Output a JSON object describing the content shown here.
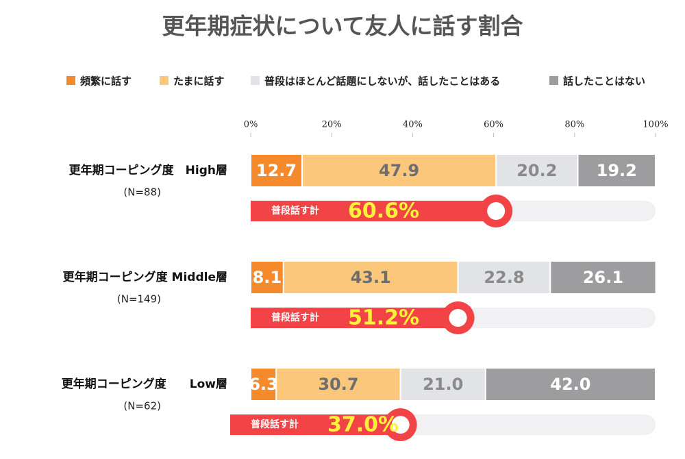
{
  "chart_data": {
    "type": "bar",
    "title": "更年期症状について友人に話す割合",
    "categories": [
      "更年期コーピング度　High層",
      "更年期コーピング度 Middle層",
      "更年期コーピング度　　Low層"
    ],
    "sample_sizes": [
      "(N=88)",
      "(N=149)",
      "(N=62)"
    ],
    "series": [
      {
        "name": "頻繁に話す",
        "color": "#f58a2c",
        "label_color": "#ffffff",
        "values": [
          12.7,
          8.1,
          6.3
        ]
      },
      {
        "name": "たまに話す",
        "color": "#fbc77b",
        "label_color": "#6e6e6e",
        "values": [
          47.9,
          43.1,
          30.7
        ]
      },
      {
        "name": "普段はほとんど話題にしないが、話したことはある",
        "color": "#e2e3e7",
        "label_color": "#8a8a8a",
        "values": [
          20.2,
          22.8,
          21.0
        ],
        "value_labels": [
          "20.2",
          "22.8",
          "21.0"
        ]
      },
      {
        "name": "話したことはない",
        "color": "#9d9d9f",
        "label_color": "#ffffff",
        "values": [
          19.2,
          26.1,
          42.0
        ],
        "value_labels": [
          "19.2",
          "26.1",
          "42.0"
        ]
      }
    ],
    "total": {
      "label": "普段話す計",
      "color": "#f24346",
      "values": [
        60.6,
        51.2,
        37.0
      ],
      "value_labels": [
        "60.6%",
        "51.2%",
        "37.0%"
      ]
    },
    "xlim": [
      0,
      100
    ],
    "xticks": [
      {
        "value": 0,
        "label": "0%"
      },
      {
        "value": 20,
        "label": "20%"
      },
      {
        "value": 40,
        "label": "40%"
      },
      {
        "value": 60,
        "label": "60%"
      },
      {
        "value": 80,
        "label": "80%"
      },
      {
        "value": 100,
        "label": "100%"
      }
    ]
  }
}
